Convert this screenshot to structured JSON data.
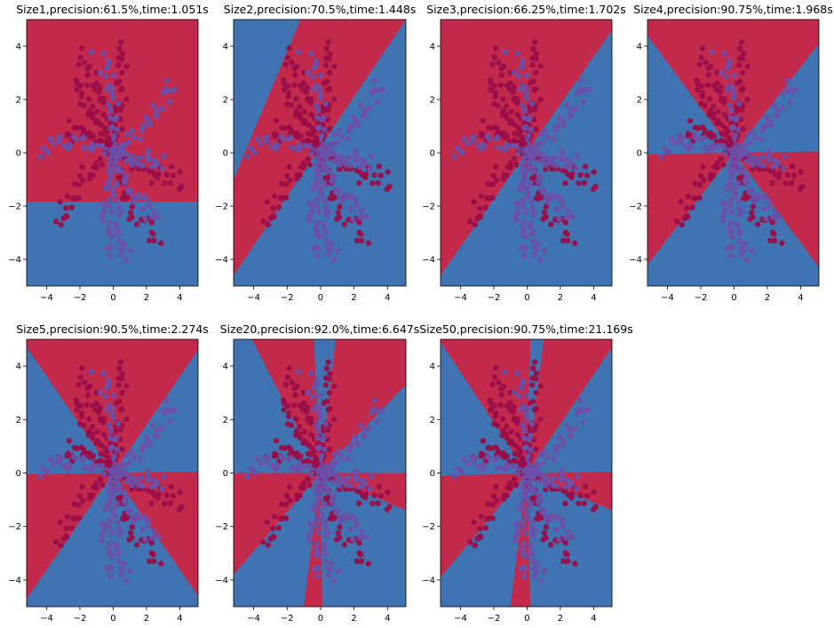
{
  "figure": {
    "background": "#ffffff",
    "colors": {
      "red_region": "#c3294a",
      "blue_region": "#3f73b1",
      "red_points": "#9a0e48",
      "blue_points": "#6c4fa8"
    }
  },
  "chart_data": [
    {
      "type": "scatter",
      "title": "Size1,precision:61.5%,time:1.051s",
      "xlim": [
        -5.2,
        5.1
      ],
      "ylim": [
        -5.0,
        5.0
      ],
      "xticks": [
        -4,
        -2,
        0,
        2,
        4
      ],
      "yticks": [
        -4,
        -2,
        0,
        2,
        4
      ],
      "grid": false,
      "decision_regions": {
        "red": [
          [
            [
              -5.2,
              -1.85
            ],
            [
              5.1,
              -1.85
            ],
            [
              5.1,
              5.0
            ],
            [
              -5.2,
              5.0
            ]
          ]
        ]
      }
    },
    {
      "type": "scatter",
      "title": "Size2,precision:70.5%,time:1.448s",
      "xlim": [
        -5.2,
        5.1
      ],
      "ylim": [
        -5.0,
        5.0
      ],
      "xticks": [
        -4,
        -2,
        0,
        2,
        4
      ],
      "yticks": [
        -4,
        -2,
        0,
        2,
        4
      ],
      "grid": false,
      "decision_regions": {
        "red": [
          [
            [
              -5.2,
              -1.0
            ],
            [
              -5.2,
              -4.6
            ],
            [
              5.1,
              5.0
            ],
            [
              -1.2,
              5.0
            ]
          ]
        ]
      }
    },
    {
      "type": "scatter",
      "title": "Size3,precision:66.25%,time:1.702s",
      "xlim": [
        -5.2,
        5.1
      ],
      "ylim": [
        -5.0,
        5.0
      ],
      "xticks": [
        -4,
        -2,
        0,
        2,
        4
      ],
      "yticks": [
        -4,
        -2,
        0,
        2,
        4
      ],
      "grid": false,
      "decision_regions": {
        "red": [
          [
            [
              -5.2,
              5.0
            ],
            [
              5.1,
              5.0
            ],
            [
              5.1,
              4.6
            ],
            [
              -5.2,
              -4.6
            ]
          ]
        ]
      }
    },
    {
      "type": "scatter",
      "title": "Size4,precision:90.75%,time:1.968s",
      "xlim": [
        -5.2,
        5.1
      ],
      "ylim": [
        -5.0,
        5.0
      ],
      "xticks": [
        -4,
        -2,
        0,
        2,
        4
      ],
      "yticks": [
        -4,
        -2,
        0,
        2,
        4
      ],
      "grid": false,
      "decision_regions": {
        "red": [
          [
            [
              -5.2,
              5.0
            ],
            [
              5.1,
              5.0
            ],
            [
              5.1,
              4.1
            ],
            [
              0,
              0
            ],
            [
              -5.2,
              4.4
            ]
          ],
          [
            [
              -5.2,
              -0.05
            ],
            [
              5.1,
              0.05
            ],
            [
              5.1,
              -4.3
            ],
            [
              0,
              0
            ],
            [
              -5.2,
              -4.2
            ]
          ]
        ]
      }
    },
    {
      "type": "scatter",
      "title": "Size5,precision:90.5%,time:2.274s",
      "xlim": [
        -5.2,
        5.1
      ],
      "ylim": [
        -5.0,
        5.0
      ],
      "xticks": [
        -4,
        -2,
        0,
        2,
        4
      ],
      "yticks": [
        -4,
        -2,
        0,
        2,
        4
      ],
      "grid": false,
      "decision_regions": {
        "red": [
          [
            [
              -5.2,
              5.0
            ],
            [
              5.1,
              5.0
            ],
            [
              5.1,
              4.6
            ],
            [
              0,
              0
            ],
            [
              -5.2,
              4.7
            ]
          ],
          [
            [
              -5.2,
              -0.05
            ],
            [
              5.1,
              0.05
            ],
            [
              5.1,
              -4.6
            ],
            [
              0,
              0
            ],
            [
              -5.2,
              -4.7
            ]
          ]
        ]
      }
    },
    {
      "type": "scatter",
      "title": "Size20,precision:92.0%,time:6.647s",
      "xlim": [
        -5.2,
        5.1
      ],
      "ylim": [
        -5.0,
        5.0
      ],
      "xticks": [
        -4,
        -2,
        0,
        2,
        4
      ],
      "yticks": [
        -4,
        -2,
        0,
        2,
        4
      ],
      "grid": false,
      "decision_regions": {
        "red": [
          [
            [
              -4.1,
              5.0
            ],
            [
              -0.4,
              5.0
            ],
            [
              0,
              0
            ]
          ],
          [
            [
              0.9,
              5.0
            ],
            [
              5.1,
              5.0
            ],
            [
              5.1,
              3.3
            ],
            [
              0,
              0
            ]
          ],
          [
            [
              -5.2,
              0.0
            ],
            [
              5.1,
              0.0
            ],
            [
              5.1,
              -1.4
            ],
            [
              0,
              0
            ],
            [
              -5.2,
              -3.8
            ]
          ],
          [
            [
              -1.0,
              -5.0
            ],
            [
              0.1,
              -5.0
            ],
            [
              0,
              0
            ]
          ]
        ]
      }
    },
    {
      "type": "scatter",
      "title": "Size50,precision:90.75%,time:21.169s",
      "xlim": [
        -5.2,
        5.1
      ],
      "ylim": [
        -5.0,
        5.0
      ],
      "xticks": [
        -4,
        -2,
        0,
        2,
        4
      ],
      "yticks": [
        -4,
        -2,
        0,
        2,
        4
      ],
      "grid": false,
      "decision_regions": {
        "red": [
          [
            [
              -5.2,
              4.9
            ],
            [
              -5.2,
              5.0
            ],
            [
              0.2,
              5.0
            ],
            [
              0,
              0
            ]
          ],
          [
            [
              1.0,
              5.0
            ],
            [
              5.1,
              5.0
            ],
            [
              5.1,
              4.7
            ],
            [
              0,
              0
            ]
          ],
          [
            [
              -5.2,
              -0.1
            ],
            [
              5.1,
              0.05
            ],
            [
              5.1,
              -1.4
            ],
            [
              0,
              0
            ],
            [
              -5.2,
              -3.9
            ]
          ],
          [
            [
              -1.0,
              -5.0
            ],
            [
              0.2,
              -5.0
            ],
            [
              0,
              0
            ]
          ]
        ]
      }
    }
  ]
}
